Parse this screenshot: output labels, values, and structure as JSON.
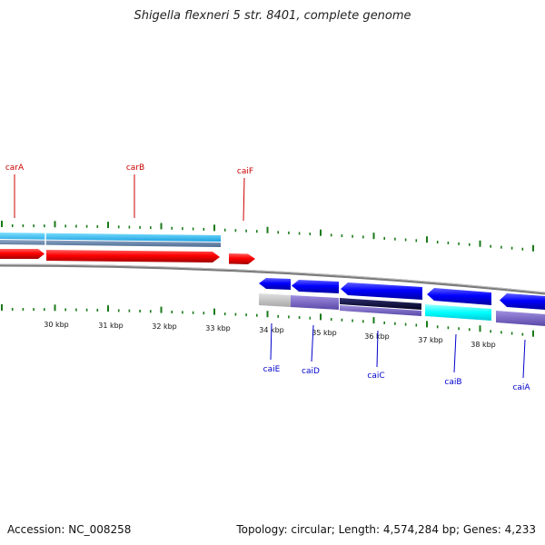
{
  "header": {
    "title": "Shigella flexneri 5 str. 8401, complete genome"
  },
  "footer": {
    "accession": "Accession: NC_008258",
    "summary": "Topology: circular; Length: 4,574,284 bp; Genes: 4,233"
  },
  "map": {
    "tick_labels": [
      "30 kbp",
      "31 kbp",
      "32 kbp",
      "33 kbp",
      "34 kbp",
      "35 kbp",
      "36 kbp",
      "37 kbp",
      "38 kbp"
    ],
    "genes_forward": [
      {
        "name": "carA",
        "color": "#ff0000"
      },
      {
        "name": "carB",
        "color": "#ff0000"
      },
      {
        "name": "caiF",
        "color": "#ff0000"
      }
    ],
    "genes_reverse": [
      {
        "name": "caiE",
        "color": "#0000ff"
      },
      {
        "name": "caiD",
        "color": "#0000ff"
      },
      {
        "name": "caiC",
        "color": "#0000ff"
      },
      {
        "name": "caiB",
        "color": "#0000ff"
      },
      {
        "name": "caiA",
        "color": "#0000ff"
      }
    ],
    "colors": {
      "tick": "#1a7a1a",
      "backbone": "#808080",
      "forward_label": "#cc0000",
      "reverse_label": "#0000cc",
      "forward_cds_track": "#33ccff",
      "reverse_feature_gray": "#c8c8c8",
      "reverse_feature_purple": "#7b68c8",
      "reverse_feature_cyan": "#00ffff",
      "reverse_feature_navy": "#000040"
    }
  }
}
